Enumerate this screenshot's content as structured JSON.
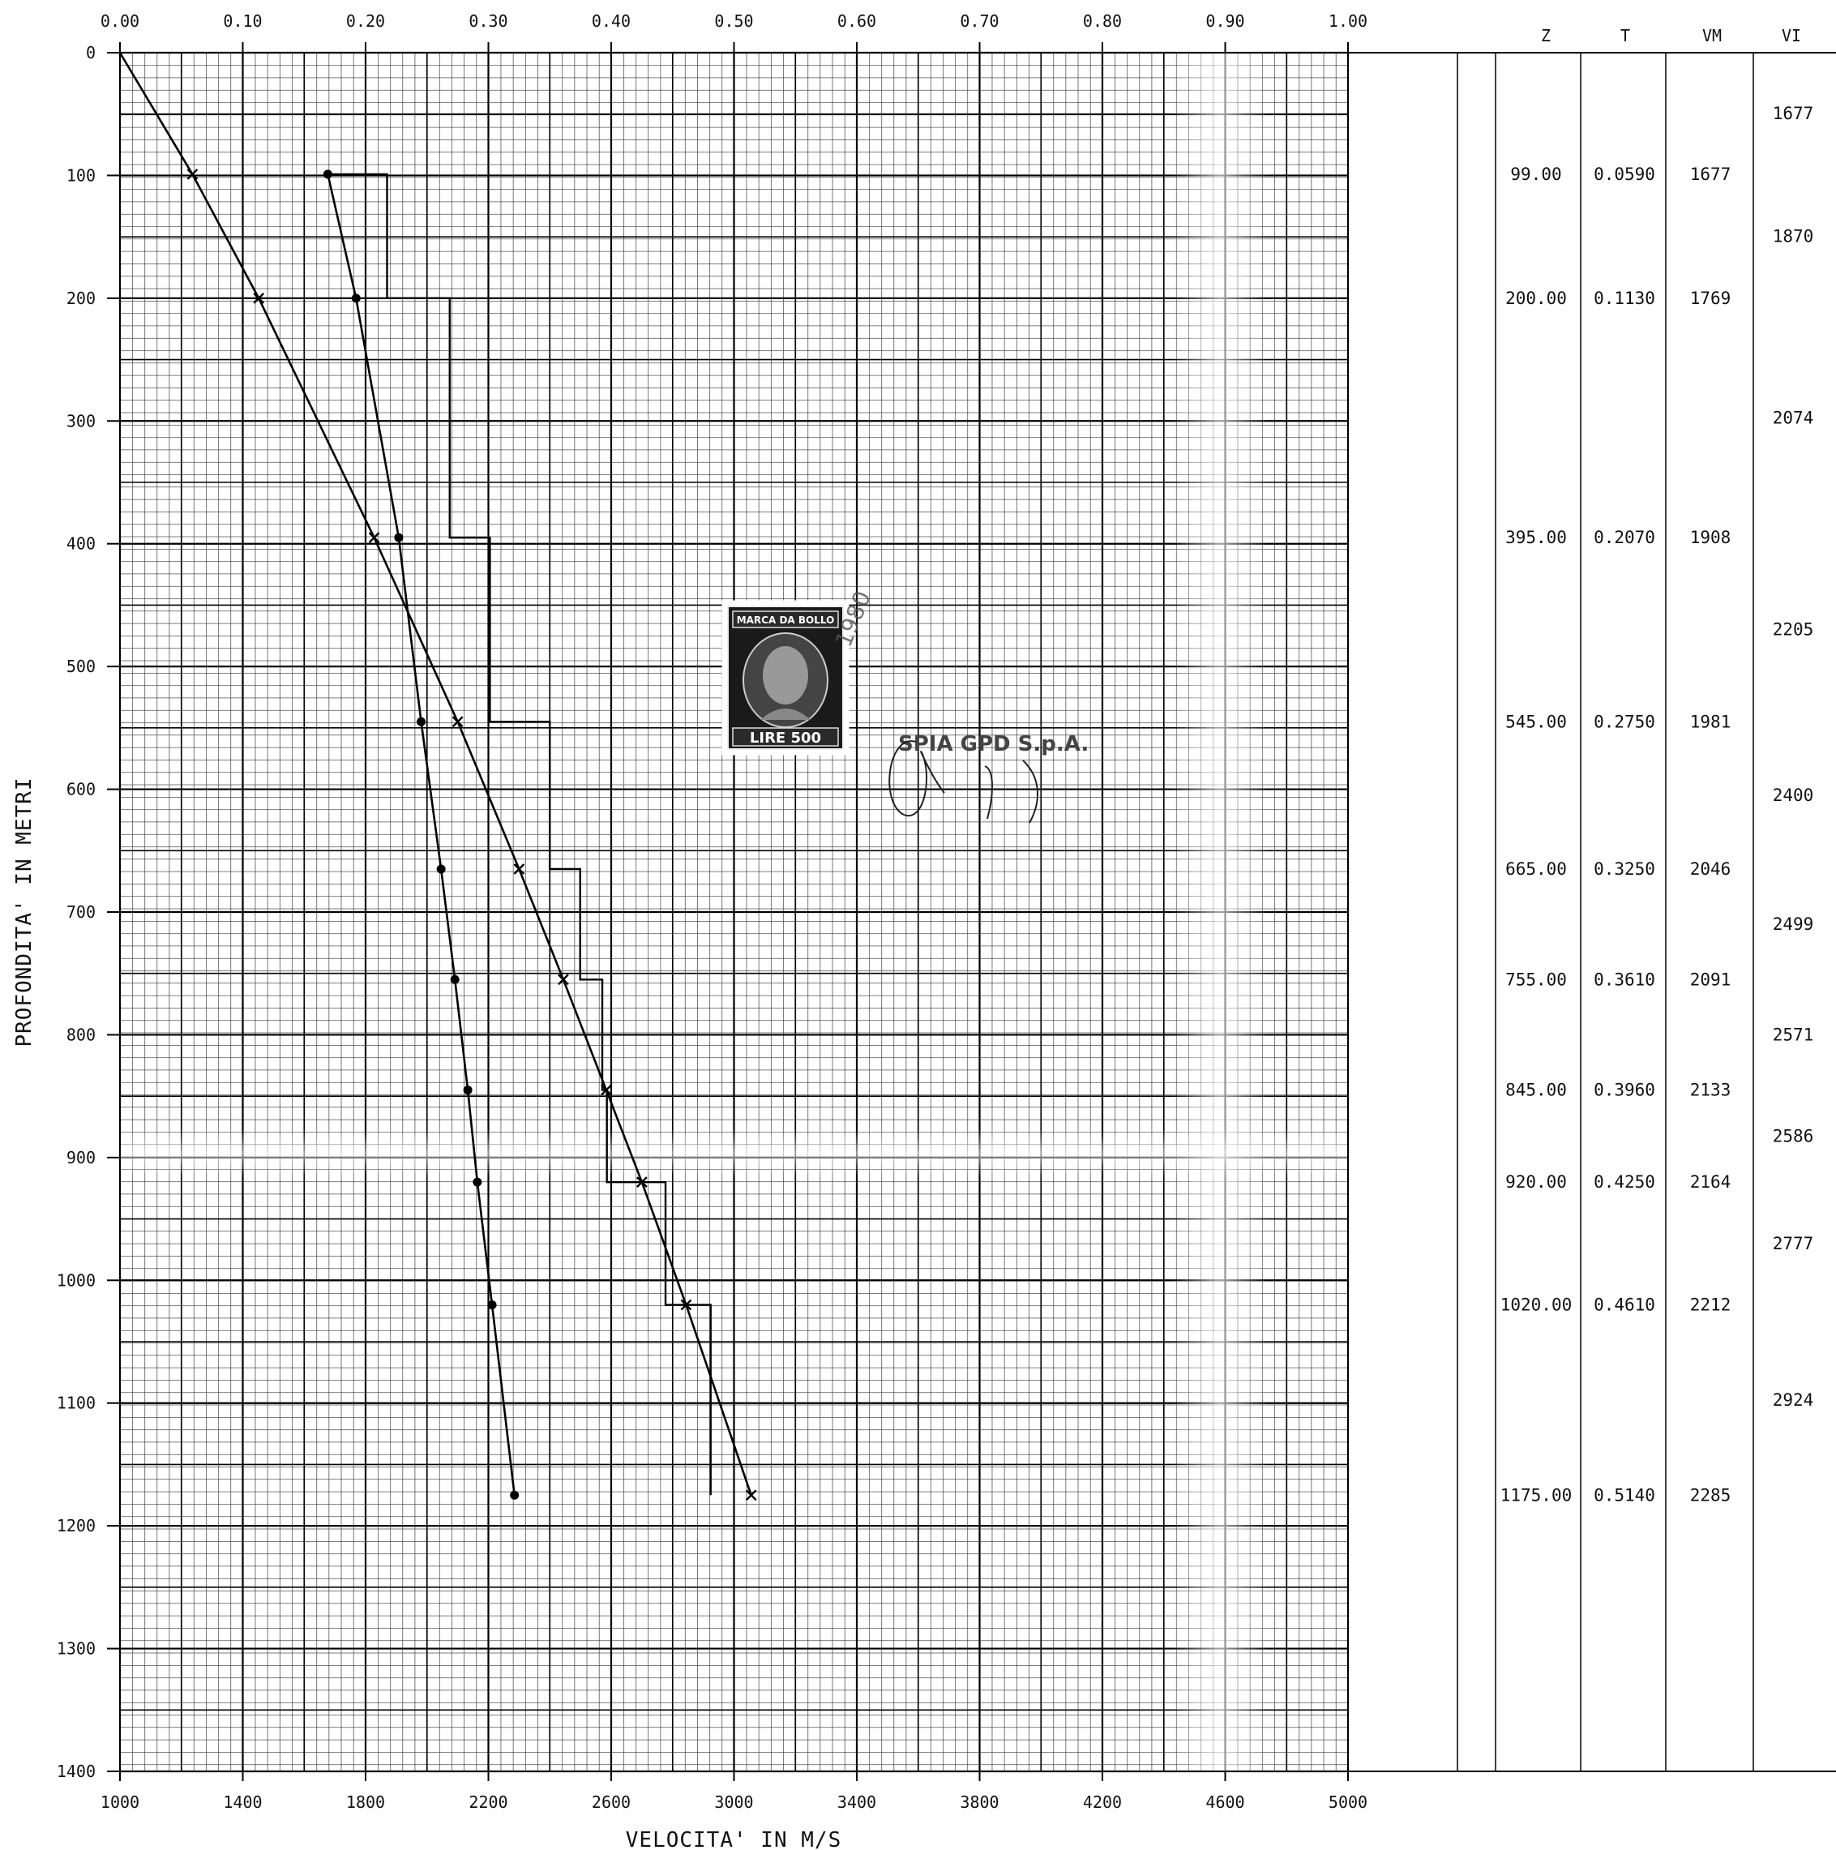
{
  "chart_data": {
    "type": "line",
    "x_axis_top": {
      "label": "",
      "range": [
        0.0,
        1.0
      ],
      "ticks": [
        "0.00",
        "0.10",
        "0.20",
        "0.30",
        "0.40",
        "0.50",
        "0.60",
        "0.70",
        "0.80",
        "0.90",
        "1.00"
      ]
    },
    "x_axis_bottom": {
      "label": "VELOCITA' IN M/S",
      "range": [
        1000,
        5000
      ],
      "ticks": [
        "1000",
        "1400",
        "1800",
        "2200",
        "2600",
        "3000",
        "3400",
        "3800",
        "4200",
        "4600",
        "5000"
      ]
    },
    "y_axis": {
      "label": "PROFONDITA' IN METRI",
      "range": [
        0,
        1400
      ],
      "ticks": [
        "0",
        "100",
        "200",
        "300",
        "400",
        "500",
        "600",
        "700",
        "800",
        "900",
        "1000",
        "1100",
        "1200",
        "1300",
        "1400"
      ]
    },
    "grid": true,
    "series": [
      {
        "name": "",
        "marker": "x",
        "axis": "top",
        "points": [
          [
            0.0,
            0
          ],
          [
            0.059,
            99
          ],
          [
            0.113,
            200
          ],
          [
            0.207,
            395
          ],
          [
            0.275,
            545
          ],
          [
            0.325,
            665
          ],
          [
            0.361,
            755
          ],
          [
            0.396,
            845
          ],
          [
            0.425,
            920
          ],
          [
            0.461,
            1020
          ],
          [
            0.514,
            1175
          ]
        ]
      },
      {
        "name": "",
        "marker": "dot",
        "axis": "bottom",
        "points": [
          [
            1677,
            99
          ],
          [
            1769,
            200
          ],
          [
            1908,
            395
          ],
          [
            1981,
            545
          ],
          [
            2046,
            665
          ],
          [
            2091,
            755
          ],
          [
            2133,
            845
          ],
          [
            2164,
            920
          ],
          [
            2212,
            1020
          ],
          [
            2285,
            1175
          ]
        ]
      },
      {
        "name": "",
        "marker": "none",
        "axis": "bottom",
        "style": "step",
        "intervals": [
          [
            99,
            200,
            1870
          ],
          [
            200,
            395,
            2074
          ],
          [
            395,
            545,
            2205
          ],
          [
            545,
            665,
            2400
          ],
          [
            665,
            755,
            2499
          ],
          [
            755,
            845,
            2571
          ],
          [
            845,
            920,
            2586
          ],
          [
            920,
            1020,
            2777
          ],
          [
            1020,
            1175,
            2924
          ]
        ]
      }
    ],
    "table": {
      "headers": [
        "Z",
        "T",
        "VM",
        "VI"
      ],
      "rows": [
        {
          "z": "99.00",
          "t": "0.0590",
          "vm": "1677",
          "depth": 99
        },
        {
          "z": "200.00",
          "t": "0.1130",
          "vm": "1769",
          "depth": 200
        },
        {
          "z": "395.00",
          "t": "0.2070",
          "vm": "1908",
          "depth": 395
        },
        {
          "z": "545.00",
          "t": "0.2750",
          "vm": "1981",
          "depth": 545
        },
        {
          "z": "665.00",
          "t": "0.3250",
          "vm": "2046",
          "depth": 665
        },
        {
          "z": "755.00",
          "t": "0.3610",
          "vm": "2091",
          "depth": 755
        },
        {
          "z": "845.00",
          "t": "0.3960",
          "vm": "2133",
          "depth": 845
        },
        {
          "z": "920.00",
          "t": "0.4250",
          "vm": "2164",
          "depth": 920
        },
        {
          "z": "1020.00",
          "t": "0.4610",
          "vm": "2212",
          "depth": 1020
        },
        {
          "z": "1175.00",
          "t": "0.5140",
          "vm": "2285",
          "depth": 1175
        }
      ],
      "vi": [
        {
          "value": "1677",
          "depth": 49.5
        },
        {
          "value": "1870",
          "depth": 149.5
        },
        {
          "value": "2074",
          "depth": 297.5
        },
        {
          "value": "2205",
          "depth": 470
        },
        {
          "value": "2400",
          "depth": 605
        },
        {
          "value": "2499",
          "depth": 710
        },
        {
          "value": "2571",
          "depth": 800
        },
        {
          "value": "2586",
          "depth": 882.5
        },
        {
          "value": "2777",
          "depth": 970
        },
        {
          "value": "2924",
          "depth": 1097.5
        }
      ]
    }
  },
  "stamp": {
    "top_text": "MARCA DA BOLLO",
    "bottom_text": "LIRE 500",
    "date_overprint": "1980"
  },
  "company_stamp": "SPIA GPD S.p.A."
}
